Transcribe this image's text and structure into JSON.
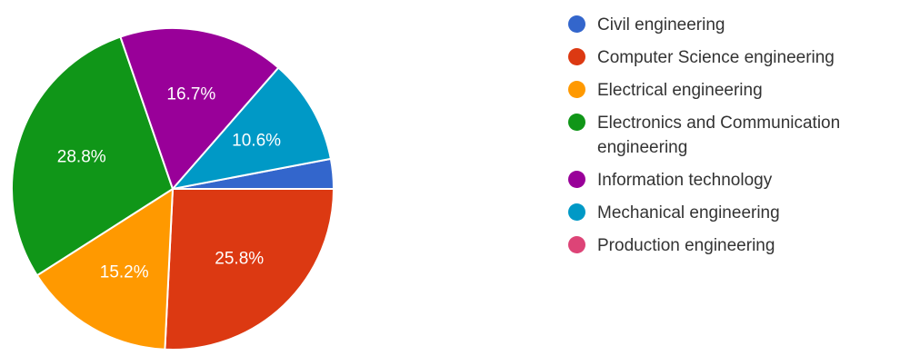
{
  "chart_data": {
    "type": "pie",
    "title": "",
    "legend_position": "right",
    "slices": [
      {
        "name": "Civil engineering",
        "value": 3.0,
        "color": "#3366cc",
        "label": ""
      },
      {
        "name": "Computer Science engineering",
        "value": 25.8,
        "color": "#dc3912",
        "label": "25.8%"
      },
      {
        "name": "Electrical engineering",
        "value": 15.2,
        "color": "#ff9900",
        "label": "15.2%"
      },
      {
        "name": "Electronics and Communication engineering",
        "value": 28.8,
        "color": "#109618",
        "label": "28.8%"
      },
      {
        "name": "Information technology",
        "value": 16.7,
        "color": "#990099",
        "label": "16.7%"
      },
      {
        "name": "Mechanical engineering",
        "value": 10.6,
        "color": "#0099c6",
        "label": "10.6%"
      },
      {
        "name": "Production engineering",
        "value": 0.0,
        "color": "#dd4477",
        "label": ""
      }
    ]
  }
}
